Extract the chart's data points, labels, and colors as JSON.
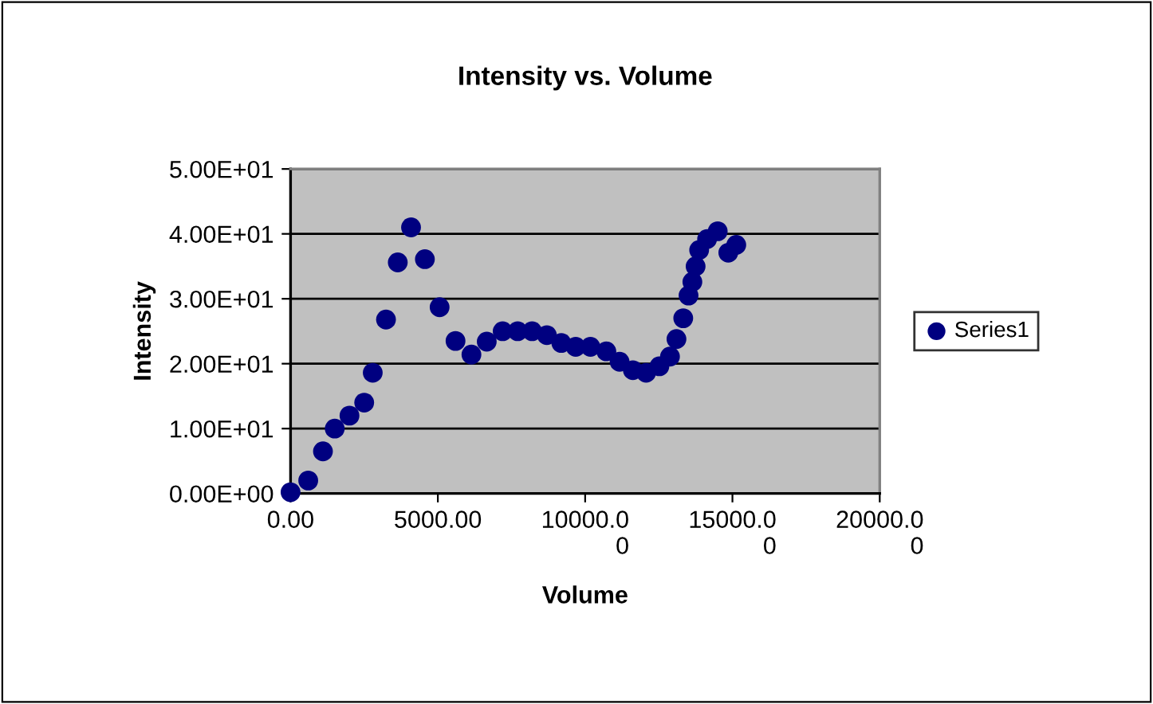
{
  "chart_data": {
    "type": "scatter",
    "title": "Intensity vs. Volume",
    "xlabel": "Volume",
    "ylabel": "Intensity",
    "series": [
      {
        "name": "Series1",
        "color": "#000080",
        "x": [
          0,
          600,
          1100,
          1500,
          2000,
          2500,
          2790,
          3240,
          3640,
          4090,
          4560,
          5060,
          5600,
          6140,
          6660,
          7200,
          7710,
          8200,
          8700,
          9190,
          9680,
          10180,
          10720,
          11170,
          11620,
          12070,
          12520,
          12880,
          13100,
          13330,
          13510,
          13640,
          13750,
          13870,
          14140,
          14500,
          14860,
          15130
        ],
        "values": [
          0.2,
          2,
          6.5,
          10,
          12,
          14,
          18.6,
          26.8,
          35.6,
          41,
          36.1,
          28.7,
          23.5,
          21.4,
          23.4,
          25,
          25,
          25,
          24.4,
          23.2,
          22.6,
          22.6,
          21.9,
          20.3,
          19,
          18.6,
          19.6,
          21.1,
          23.8,
          27,
          30.5,
          32.6,
          35,
          37.5,
          39.2,
          40.4,
          37.1,
          38.3
        ]
      }
    ],
    "xlim": [
      0,
      20000
    ],
    "xticks": [
      {
        "value": 0,
        "label": "0.00"
      },
      {
        "value": 5000,
        "label": "5000.00"
      },
      {
        "value": 10000,
        "label": "10000.0\n0"
      },
      {
        "value": 15000,
        "label": "15000.0\n0"
      },
      {
        "value": 20000,
        "label": "20000.0\n0"
      }
    ],
    "ylim": [
      0,
      50
    ],
    "yticks": [
      {
        "value": 0,
        "label": "0.00E+00"
      },
      {
        "value": 10,
        "label": "1.00E+01"
      },
      {
        "value": 20,
        "label": "2.00E+01"
      },
      {
        "value": 30,
        "label": "3.00E+01"
      },
      {
        "value": 40,
        "label": "4.00E+01"
      },
      {
        "value": 50,
        "label": "5.00E+01"
      }
    ],
    "grid": "y",
    "legend": "right",
    "marker": "circle"
  }
}
